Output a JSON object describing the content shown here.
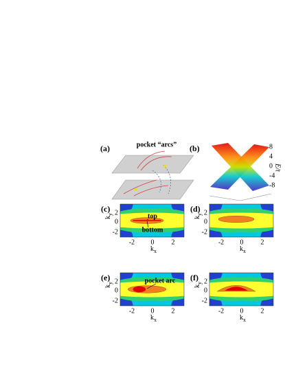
{
  "panels": [
    {
      "label": "(a)",
      "annotation": "pocket “arcs”"
    },
    {
      "label": "(b)",
      "axis_label": "E/t",
      "ticks": [
        "8",
        "4",
        "0",
        "-4",
        "-8"
      ]
    },
    {
      "label": "(c)",
      "annotations": [
        "top",
        "bottom"
      ]
    },
    {
      "label": "(d)"
    },
    {
      "label": "(e)",
      "annotations": [
        "pocket arc"
      ]
    },
    {
      "label": "(f)"
    }
  ],
  "contour_axes": {
    "x_label": {
      "base": "k",
      "sub": "x"
    },
    "y_label": {
      "base": "k",
      "sub": "y"
    },
    "xticks": [
      "-2",
      "0",
      "2"
    ],
    "yticks": [
      "2",
      "0",
      "-2"
    ]
  }
}
